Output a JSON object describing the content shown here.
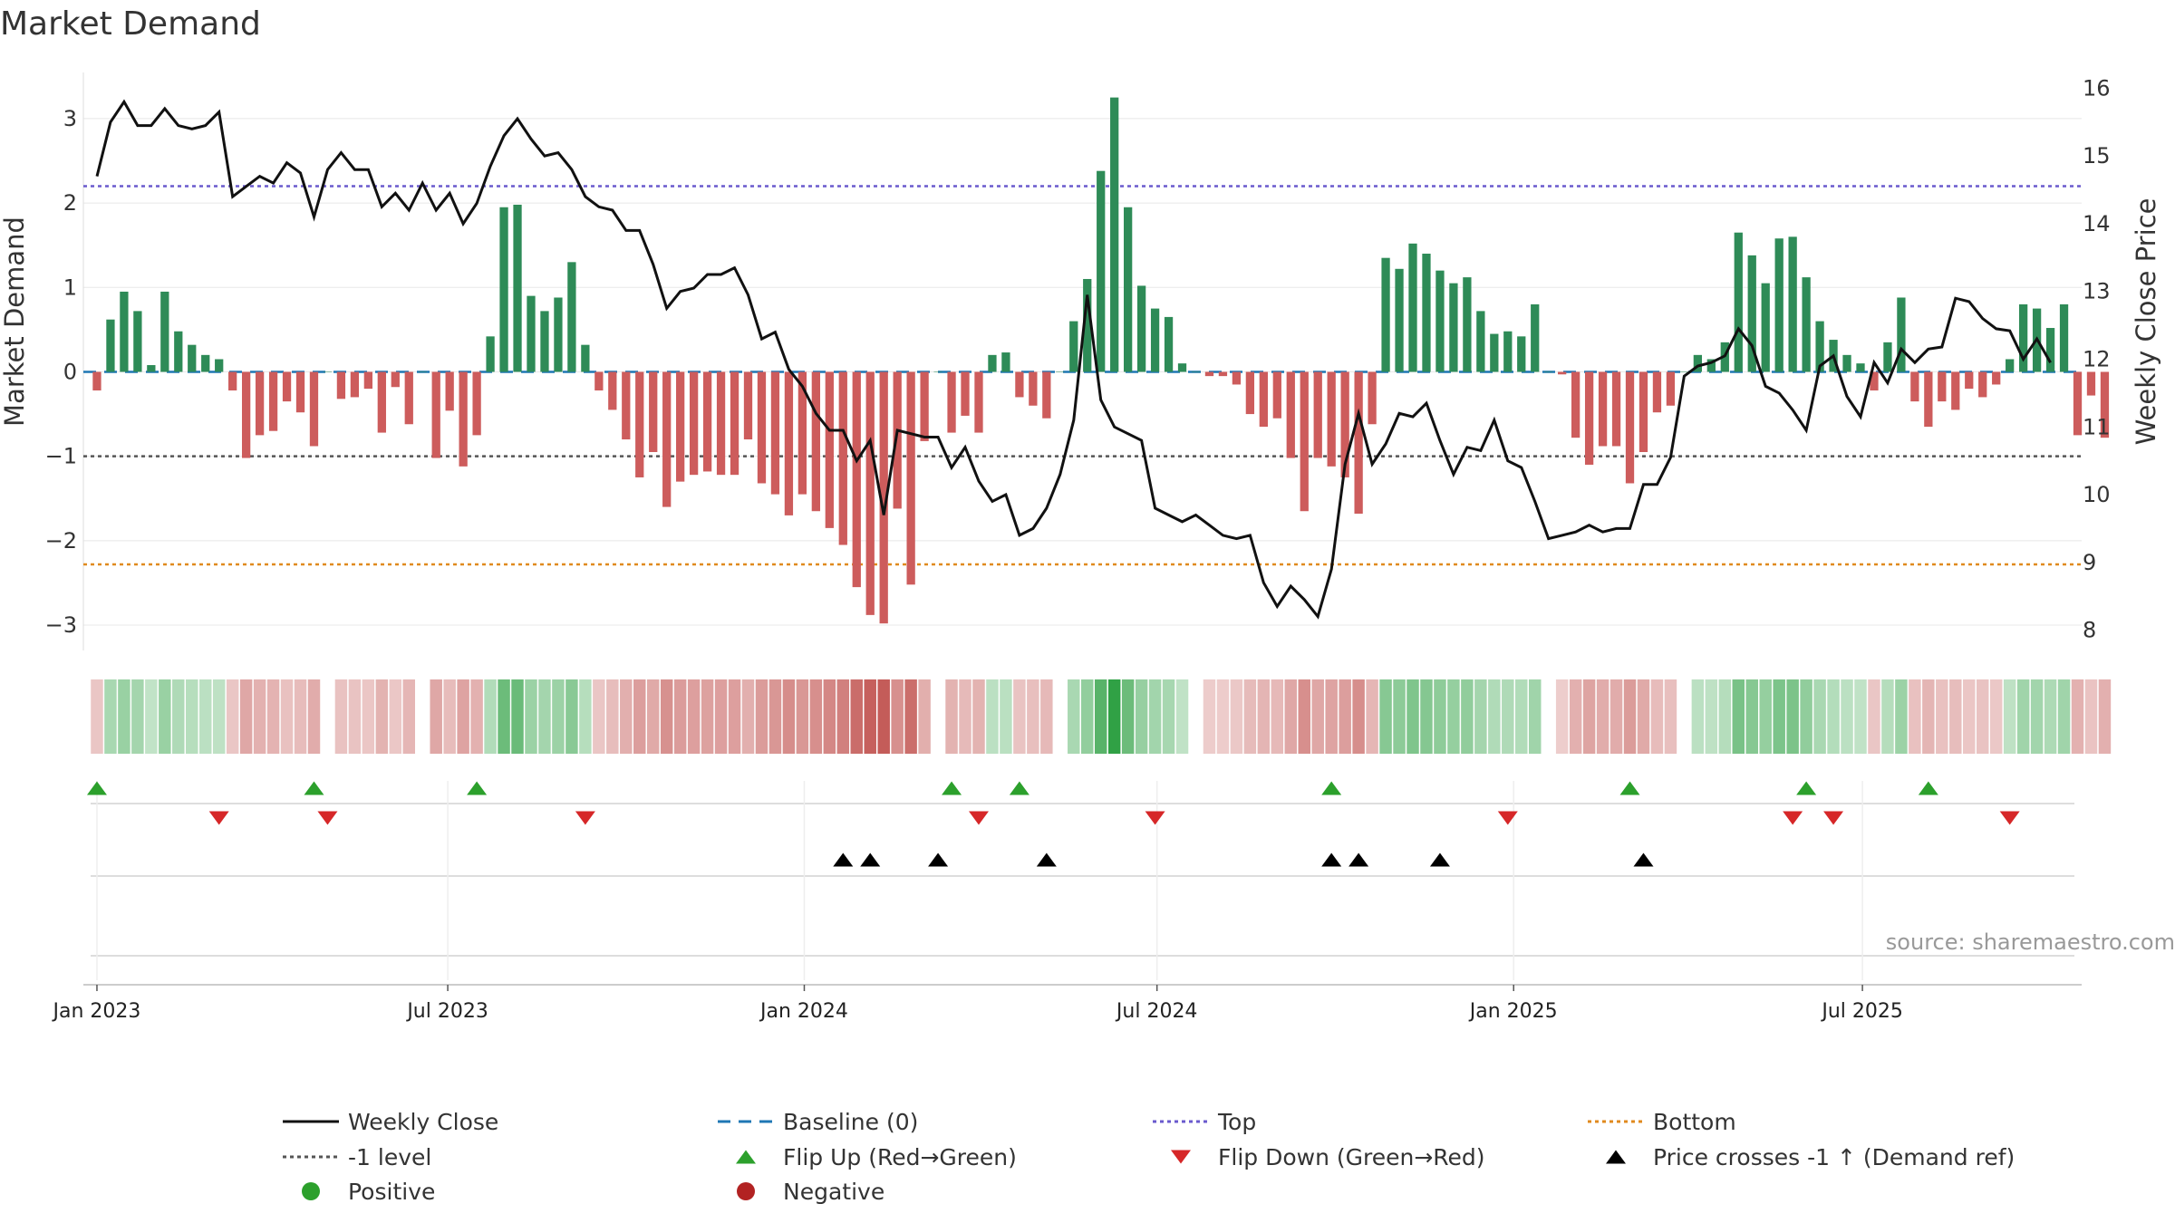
{
  "title": "Market Demand",
  "source": "source: sharemaestro.com",
  "colors": {
    "positive": "#2e8b57",
    "negative": "#cd5c5c",
    "close": "#111111",
    "baseline": "#1f77b4",
    "top": "#6a5acd",
    "minus1": "#555555",
    "bottom": "#e08a1e",
    "flip_up": "#2ca02c",
    "flip_down": "#d62728",
    "cross": "#000000"
  },
  "chart_data": {
    "type": "bar",
    "title": "Market Demand",
    "ylabel_left": "Market Demand",
    "ylabel_right": "Weekly Close Price",
    "x_start": "2023-01-01",
    "x_step_days": 7,
    "x_ticks": [
      "Jan 2023",
      "Jul 2023",
      "Jan 2024",
      "Jul 2024",
      "Jan 2025",
      "Jul 2025"
    ],
    "x_tick_weeks": [
      0.0,
      25.86,
      52.14,
      78.14,
      104.43,
      130.14
    ],
    "ylim_left": [
      -3.3,
      3.6
    ],
    "yticks_left": [
      3,
      2,
      1,
      0,
      -1,
      -2,
      -3
    ],
    "yticks_left_labels": [
      "3",
      "2",
      "1",
      "0",
      "−1",
      "−2",
      "−3"
    ],
    "ylim_right": [
      7.7,
      16.3
    ],
    "yticks_right": [
      16,
      15,
      14,
      13,
      12,
      11,
      10,
      9,
      8
    ],
    "yticks_right_labels": [
      "16",
      "15",
      "14",
      "13",
      "12",
      "11",
      "10",
      "9",
      "8"
    ],
    "reference_lines": {
      "baseline": 0,
      "top": 2.2,
      "minus1": -1,
      "bottom": -2.28
    },
    "demand": [
      -0.22,
      0.62,
      0.95,
      0.72,
      0.08,
      0.95,
      0.48,
      0.32,
      0.2,
      0.15,
      -0.22,
      -1.02,
      -0.75,
      -0.7,
      -0.35,
      -0.48,
      -0.88,
      0.0,
      -0.32,
      -0.3,
      -0.2,
      -0.72,
      -0.18,
      -0.62,
      0.0,
      -1.02,
      -0.46,
      -1.12,
      -0.75,
      0.42,
      1.95,
      1.98,
      0.9,
      0.72,
      0.88,
      1.3,
      0.32,
      -0.22,
      -0.45,
      -0.8,
      -1.25,
      -0.95,
      -1.6,
      -1.3,
      -1.22,
      -1.18,
      -1.22,
      -1.22,
      -0.8,
      -1.32,
      -1.45,
      -1.7,
      -1.45,
      -1.65,
      -1.85,
      -2.05,
      -2.55,
      -2.88,
      -2.98,
      -1.62,
      -2.52,
      -0.82,
      0.0,
      -0.72,
      -0.52,
      -0.72,
      0.2,
      0.23,
      -0.3,
      -0.4,
      -0.55,
      0.0,
      0.6,
      1.1,
      2.38,
      3.25,
      1.95,
      1.02,
      0.75,
      0.65,
      0.1,
      0.0,
      -0.05,
      -0.05,
      -0.15,
      -0.5,
      -0.65,
      -0.55,
      -1.02,
      -1.65,
      -1.02,
      -1.12,
      -1.25,
      -1.68,
      -0.62,
      1.35,
      1.22,
      1.52,
      1.4,
      1.2,
      1.05,
      1.12,
      0.72,
      0.45,
      0.48,
      0.42,
      0.8,
      0.0,
      -0.03,
      -0.78,
      -1.1,
      -0.88,
      -0.88,
      -1.32,
      -0.95,
      -0.48,
      -0.4,
      0.0,
      0.2,
      0.15,
      0.35,
      1.65,
      1.38,
      1.05,
      1.58,
      1.6,
      1.12,
      0.6,
      0.38,
      0.2,
      0.1,
      -0.22,
      0.35,
      0.88,
      -0.35,
      -0.65,
      -0.35,
      -0.45,
      -0.2,
      -0.3,
      -0.15,
      0.15,
      0.8,
      0.75,
      0.52,
      0.8,
      -0.75,
      -0.28,
      -0.78
    ],
    "close": [
      14.7,
      15.5,
      15.8,
      15.45,
      15.45,
      15.7,
      15.45,
      15.4,
      15.45,
      15.65,
      14.4,
      14.55,
      14.7,
      14.6,
      14.9,
      14.75,
      14.1,
      14.8,
      15.05,
      14.8,
      14.8,
      14.25,
      14.45,
      14.2,
      14.6,
      14.2,
      14.45,
      14.0,
      14.3,
      14.85,
      15.3,
      15.55,
      15.25,
      15.0,
      15.05,
      14.8,
      14.4,
      14.25,
      14.2,
      13.9,
      13.9,
      13.4,
      12.75,
      13.0,
      13.05,
      13.25,
      13.25,
      13.35,
      12.95,
      12.3,
      12.4,
      11.85,
      11.6,
      11.2,
      10.95,
      10.95,
      10.5,
      10.8,
      9.7,
      10.95,
      10.9,
      10.85,
      10.85,
      10.4,
      10.7,
      10.2,
      9.9,
      10.0,
      9.4,
      9.5,
      9.8,
      10.3,
      11.1,
      12.95,
      11.4,
      11.0,
      10.9,
      10.8,
      9.8,
      9.7,
      9.6,
      9.7,
      9.55,
      9.4,
      9.35,
      9.4,
      8.7,
      8.35,
      8.65,
      8.45,
      8.2,
      8.9,
      10.45,
      11.2,
      10.45,
      10.75,
      11.2,
      11.15,
      11.35,
      10.8,
      10.3,
      10.7,
      10.65,
      11.1,
      10.5,
      10.4,
      9.9,
      9.35,
      9.4,
      9.45,
      9.55,
      9.45,
      9.5,
      9.5,
      10.15,
      10.15,
      10.55,
      11.75,
      11.9,
      11.95,
      12.05,
      12.45,
      12.2,
      11.6,
      11.5,
      11.25,
      10.95,
      11.9,
      12.05,
      11.45,
      11.15,
      11.95,
      11.65,
      12.15,
      11.95,
      12.15,
      12.18,
      12.9,
      12.85,
      12.6,
      12.45,
      12.42,
      12.0,
      12.3,
      11.95
    ],
    "flip_up_weeks": [
      0,
      16,
      28,
      63,
      68,
      91,
      113,
      126,
      135
    ],
    "flip_down_weeks": [
      9,
      17,
      36,
      65,
      78,
      104,
      125,
      128,
      141
    ],
    "cross_up_weeks": [
      55,
      57,
      62,
      70,
      91,
      93,
      99,
      114
    ]
  },
  "legend": [
    {
      "label": "Weekly Close",
      "marker": "solid"
    },
    {
      "label": "Baseline (0)",
      "marker": "dashed"
    },
    {
      "label": "Top",
      "marker": "dotted-top"
    },
    {
      "label": "Bottom",
      "marker": "dotted-bottom"
    },
    {
      "label": "-1 level",
      "marker": "dotted-minus1"
    },
    {
      "label": "Flip Up (Red→Green)",
      "marker": "triangle-up-green"
    },
    {
      "label": "Flip Down (Green→Red)",
      "marker": "triangle-down-red"
    },
    {
      "label": "Price crosses -1 ↑ (Demand ref)",
      "marker": "triangle-up-black"
    },
    {
      "label": "Positive",
      "marker": "circle-green"
    },
    {
      "label": "Negative",
      "marker": "circle-red"
    }
  ]
}
